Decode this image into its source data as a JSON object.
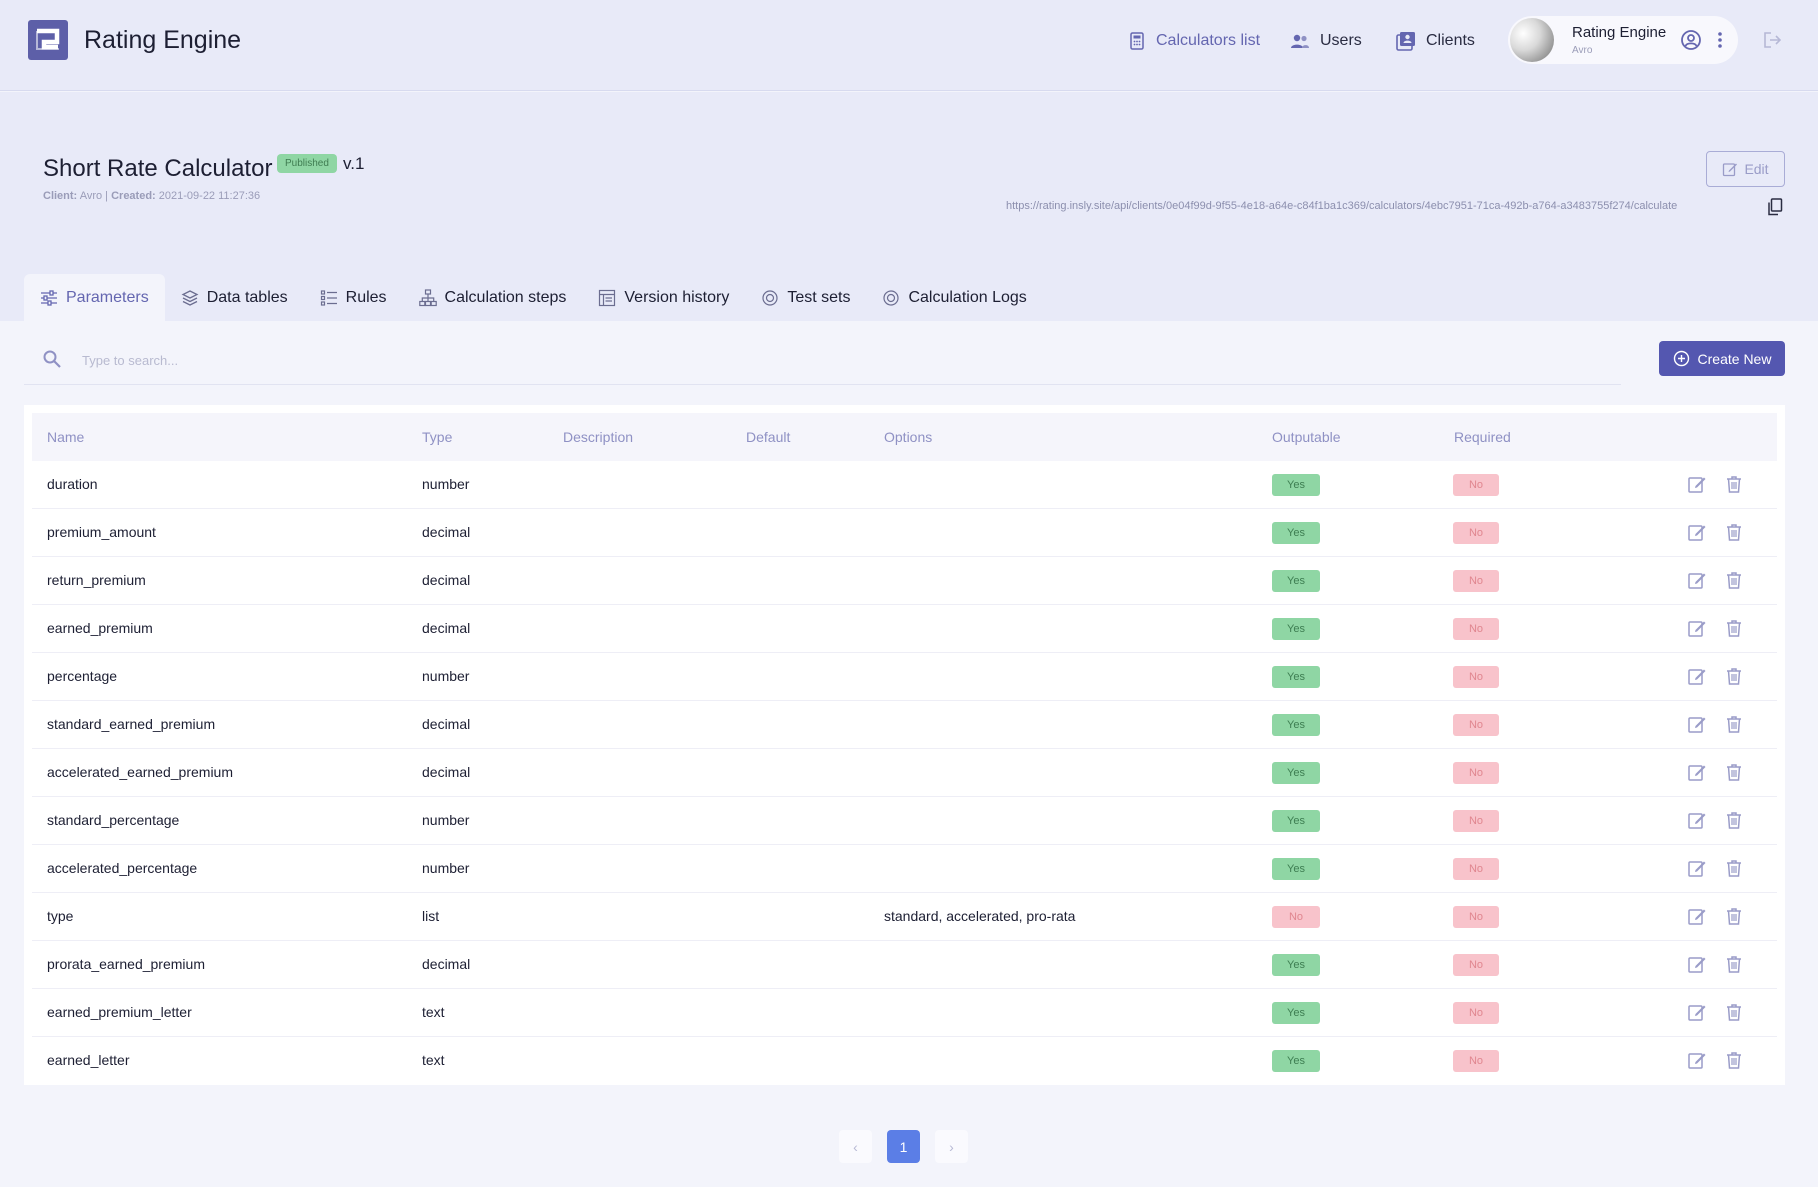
{
  "app": {
    "brand": "Rating Engine",
    "colors": {
      "accent": "#5457b0",
      "header_bg": "#e8eaf8",
      "yes": "#8fd6a4",
      "no": "#f8c3cb",
      "page_active": "#5b7ee6"
    }
  },
  "nav": {
    "calculators": "Calculators list",
    "users": "Users",
    "clients": "Clients"
  },
  "user": {
    "name": "Rating Engine",
    "client": "Avro"
  },
  "calculator": {
    "title": "Short Rate Calculator",
    "status": "Published",
    "version": "v.1",
    "client_label": "Client:",
    "client_value": "Avro",
    "separator": "|",
    "created_label": "Created:",
    "created_value": "2021-09-22 11:27:36",
    "edit_label": "Edit",
    "endpoint": "https://rating.insly.site/api/clients/0e04f99d-9f55-4e18-a64e-c84f1ba1c369/calculators/4ebc7951-71ca-492b-a764-a3483755f274/calculate"
  },
  "tabs": [
    {
      "label": "Parameters",
      "icon": "sliders-icon",
      "active": true
    },
    {
      "label": "Data tables",
      "icon": "layers-icon"
    },
    {
      "label": "Rules",
      "icon": "list-icon"
    },
    {
      "label": "Calculation steps",
      "icon": "hierarchy-icon"
    },
    {
      "label": "Version history",
      "icon": "table-icon"
    },
    {
      "label": "Test sets",
      "icon": "target-icon"
    },
    {
      "label": "Calculation Logs",
      "icon": "target-icon"
    }
  ],
  "search": {
    "placeholder": "Type to search..."
  },
  "create_button": "Create New",
  "table": {
    "columns": [
      "Name",
      "Type",
      "Description",
      "Default",
      "Options",
      "Outputable",
      "Required"
    ],
    "rows": [
      {
        "name": "duration",
        "type": "number",
        "description": "",
        "default": "",
        "options": "",
        "outputable": "Yes",
        "required": "No"
      },
      {
        "name": "premium_amount",
        "type": "decimal",
        "description": "",
        "default": "",
        "options": "",
        "outputable": "Yes",
        "required": "No"
      },
      {
        "name": "return_premium",
        "type": "decimal",
        "description": "",
        "default": "",
        "options": "",
        "outputable": "Yes",
        "required": "No"
      },
      {
        "name": "earned_premium",
        "type": "decimal",
        "description": "",
        "default": "",
        "options": "",
        "outputable": "Yes",
        "required": "No"
      },
      {
        "name": "percentage",
        "type": "number",
        "description": "",
        "default": "",
        "options": "",
        "outputable": "Yes",
        "required": "No"
      },
      {
        "name": "standard_earned_premium",
        "type": "decimal",
        "description": "",
        "default": "",
        "options": "",
        "outputable": "Yes",
        "required": "No"
      },
      {
        "name": "accelerated_earned_premium",
        "type": "decimal",
        "description": "",
        "default": "",
        "options": "",
        "outputable": "Yes",
        "required": "No"
      },
      {
        "name": "standard_percentage",
        "type": "number",
        "description": "",
        "default": "",
        "options": "",
        "outputable": "Yes",
        "required": "No"
      },
      {
        "name": "accelerated_percentage",
        "type": "number",
        "description": "",
        "default": "",
        "options": "",
        "outputable": "Yes",
        "required": "No"
      },
      {
        "name": "type",
        "type": "list",
        "description": "",
        "default": "",
        "options": "standard, accelerated, pro-rata",
        "outputable": "No",
        "required": "No"
      },
      {
        "name": "prorata_earned_premium",
        "type": "decimal",
        "description": "",
        "default": "",
        "options": "",
        "outputable": "Yes",
        "required": "No"
      },
      {
        "name": "earned_premium_letter",
        "type": "text",
        "description": "",
        "default": "",
        "options": "",
        "outputable": "Yes",
        "required": "No"
      },
      {
        "name": "earned_letter",
        "type": "text",
        "description": "",
        "default": "",
        "options": "",
        "outputable": "Yes",
        "required": "No"
      }
    ]
  },
  "pagination": {
    "current": "1",
    "prev": "‹",
    "next": "›"
  }
}
